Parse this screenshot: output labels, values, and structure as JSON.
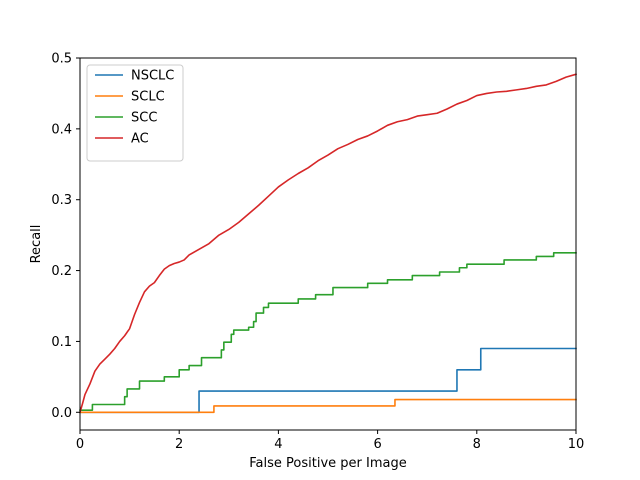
{
  "chart_data": {
    "type": "line",
    "title": "",
    "xlabel": "False Positive per Image",
    "ylabel": "Recall",
    "xlim": [
      0,
      10
    ],
    "ylim": [
      -0.025,
      0.5
    ],
    "xticks": [
      0,
      2,
      4,
      6,
      8,
      10
    ],
    "yticks": [
      0.0,
      0.1,
      0.2,
      0.3,
      0.4,
      0.5
    ],
    "xtick_labels": [
      "0",
      "2",
      "4",
      "6",
      "8",
      "10"
    ],
    "ytick_labels": [
      "0.0",
      "0.1",
      "0.2",
      "0.3",
      "0.4",
      "0.5"
    ],
    "grid": false,
    "legend_position": "top-left",
    "series": [
      {
        "name": "NSCLC",
        "color": "#1f77b4",
        "step": true,
        "points": [
          [
            0,
            0.0
          ],
          [
            2.2,
            0.0
          ],
          [
            2.4,
            0.03
          ],
          [
            7.55,
            0.03
          ],
          [
            7.6,
            0.06
          ],
          [
            8.0,
            0.06
          ],
          [
            8.08,
            0.09
          ],
          [
            10,
            0.09
          ]
        ]
      },
      {
        "name": "SCLC",
        "color": "#ff7f0e",
        "step": true,
        "points": [
          [
            0,
            0.0
          ],
          [
            2.6,
            0.0
          ],
          [
            2.7,
            0.009
          ],
          [
            6.25,
            0.009
          ],
          [
            6.35,
            0.018
          ],
          [
            10,
            0.018
          ]
        ]
      },
      {
        "name": "SCC",
        "color": "#2ca02c",
        "step": true,
        "points": [
          [
            0,
            0.003
          ],
          [
            0.2,
            0.003
          ],
          [
            0.25,
            0.011
          ],
          [
            0.7,
            0.011
          ],
          [
            0.9,
            0.022
          ],
          [
            0.95,
            0.033
          ],
          [
            1.15,
            0.033
          ],
          [
            1.2,
            0.044
          ],
          [
            1.6,
            0.044
          ],
          [
            1.7,
            0.05
          ],
          [
            1.9,
            0.05
          ],
          [
            2.0,
            0.06
          ],
          [
            2.2,
            0.066
          ],
          [
            2.4,
            0.066
          ],
          [
            2.45,
            0.077
          ],
          [
            2.75,
            0.077
          ],
          [
            2.85,
            0.088
          ],
          [
            2.9,
            0.099
          ],
          [
            3.0,
            0.099
          ],
          [
            3.05,
            0.11
          ],
          [
            3.1,
            0.116
          ],
          [
            3.3,
            0.116
          ],
          [
            3.4,
            0.12
          ],
          [
            3.5,
            0.128
          ],
          [
            3.55,
            0.14
          ],
          [
            3.7,
            0.148
          ],
          [
            3.8,
            0.154
          ],
          [
            4.3,
            0.154
          ],
          [
            4.4,
            0.16
          ],
          [
            4.7,
            0.16
          ],
          [
            4.75,
            0.166
          ],
          [
            5.0,
            0.166
          ],
          [
            5.1,
            0.176
          ],
          [
            5.7,
            0.176
          ],
          [
            5.8,
            0.182
          ],
          [
            6.1,
            0.182
          ],
          [
            6.2,
            0.187
          ],
          [
            6.6,
            0.187
          ],
          [
            6.7,
            0.193
          ],
          [
            7.15,
            0.193
          ],
          [
            7.25,
            0.198
          ],
          [
            7.6,
            0.198
          ],
          [
            7.65,
            0.204
          ],
          [
            7.75,
            0.204
          ],
          [
            7.8,
            0.209
          ],
          [
            8.5,
            0.209
          ],
          [
            8.55,
            0.215
          ],
          [
            9.1,
            0.215
          ],
          [
            9.2,
            0.22
          ],
          [
            9.5,
            0.22
          ],
          [
            9.55,
            0.225
          ],
          [
            10,
            0.225
          ]
        ]
      },
      {
        "name": "AC",
        "color": "#d62728",
        "step": false,
        "points": [
          [
            0,
            0.0
          ],
          [
            0.05,
            0.012
          ],
          [
            0.1,
            0.025
          ],
          [
            0.2,
            0.04
          ],
          [
            0.3,
            0.058
          ],
          [
            0.4,
            0.068
          ],
          [
            0.5,
            0.075
          ],
          [
            0.6,
            0.082
          ],
          [
            0.7,
            0.09
          ],
          [
            0.8,
            0.1
          ],
          [
            0.9,
            0.108
          ],
          [
            1.0,
            0.118
          ],
          [
            1.1,
            0.138
          ],
          [
            1.2,
            0.155
          ],
          [
            1.3,
            0.17
          ],
          [
            1.4,
            0.178
          ],
          [
            1.5,
            0.183
          ],
          [
            1.6,
            0.193
          ],
          [
            1.7,
            0.202
          ],
          [
            1.8,
            0.207
          ],
          [
            1.9,
            0.21
          ],
          [
            2.0,
            0.212
          ],
          [
            2.1,
            0.215
          ],
          [
            2.2,
            0.222
          ],
          [
            2.4,
            0.23
          ],
          [
            2.6,
            0.238
          ],
          [
            2.8,
            0.25
          ],
          [
            3.0,
            0.258
          ],
          [
            3.2,
            0.268
          ],
          [
            3.4,
            0.28
          ],
          [
            3.6,
            0.292
          ],
          [
            3.8,
            0.305
          ],
          [
            4.0,
            0.318
          ],
          [
            4.2,
            0.328
          ],
          [
            4.4,
            0.337
          ],
          [
            4.6,
            0.345
          ],
          [
            4.8,
            0.355
          ],
          [
            5.0,
            0.363
          ],
          [
            5.2,
            0.372
          ],
          [
            5.4,
            0.378
          ],
          [
            5.6,
            0.385
          ],
          [
            5.8,
            0.39
          ],
          [
            6.0,
            0.397
          ],
          [
            6.2,
            0.405
          ],
          [
            6.4,
            0.41
          ],
          [
            6.6,
            0.413
          ],
          [
            6.8,
            0.418
          ],
          [
            7.0,
            0.42
          ],
          [
            7.2,
            0.422
          ],
          [
            7.4,
            0.428
          ],
          [
            7.6,
            0.435
          ],
          [
            7.8,
            0.44
          ],
          [
            8.0,
            0.447
          ],
          [
            8.2,
            0.45
          ],
          [
            8.4,
            0.452
          ],
          [
            8.6,
            0.453
          ],
          [
            8.8,
            0.455
          ],
          [
            9.0,
            0.457
          ],
          [
            9.2,
            0.46
          ],
          [
            9.4,
            0.462
          ],
          [
            9.6,
            0.467
          ],
          [
            9.8,
            0.473
          ],
          [
            10,
            0.477
          ]
        ]
      }
    ]
  }
}
